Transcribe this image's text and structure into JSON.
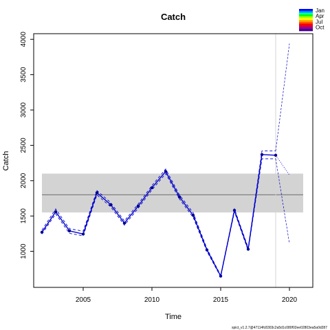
{
  "chart_data": {
    "type": "line",
    "title": "Catch",
    "xlabel": "Time",
    "ylabel": "Catch",
    "xlim": [
      2001.4,
      2021.7
    ],
    "ylim": [
      490,
      4080
    ],
    "x_ticks": [
      2005,
      2010,
      2015,
      2020
    ],
    "y_ticks": [
      1000,
      1500,
      2000,
      2500,
      3000,
      3500,
      4000
    ],
    "grid": false,
    "band": {
      "x": [
        2002,
        2021
      ],
      "y": [
        1550,
        2100
      ],
      "color": "#d3d3d3"
    },
    "hline": {
      "y": 1800,
      "color": "#7f7f7f"
    },
    "vline": {
      "x": 2019,
      "color": "#d3d3d3"
    },
    "series": [
      {
        "style": "solid-with-points",
        "color": "#0000cd",
        "x": [
          2002,
          2003,
          2004,
          2005,
          2006,
          2007,
          2008,
          2009,
          2010,
          2011,
          2012,
          2013,
          2014,
          2015,
          2016,
          2017,
          2018,
          2019
        ],
        "y": [
          1270,
          1560,
          1290,
          1245,
          1830,
          1660,
          1400,
          1640,
          1900,
          2130,
          1770,
          1510,
          1020,
          650,
          1580,
          1030,
          2370,
          2360
        ]
      },
      {
        "style": "dashed",
        "color": "#0000cd",
        "x": [
          2002,
          2003,
          2004,
          2005,
          2006,
          2007,
          2008,
          2009,
          2010,
          2011,
          2012,
          2013,
          2014,
          2015,
          2016,
          2017,
          2018,
          2019
        ],
        "y": [
          1300,
          1600,
          1320,
          1285,
          1860,
          1690,
          1430,
          1670,
          1930,
          2165,
          1800,
          1545,
          1040,
          660,
          1600,
          1050,
          2420,
          2420
        ]
      },
      {
        "style": "dashed",
        "color": "#0000cd",
        "x": [
          2002,
          2003,
          2004,
          2005,
          2006,
          2007,
          2008,
          2009,
          2010,
          2011,
          2012,
          2013,
          2014,
          2015,
          2016,
          2017,
          2018,
          2019
        ],
        "y": [
          1245,
          1530,
          1255,
          1220,
          1800,
          1630,
          1370,
          1610,
          1870,
          2100,
          1740,
          1480,
          1000,
          640,
          1560,
          1010,
          2310,
          2310
        ]
      },
      {
        "style": "dotted",
        "color": "#0000cd",
        "x": [
          2019,
          2020
        ],
        "y": [
          2360,
          2080
        ]
      },
      {
        "style": "dashed-thin",
        "color": "#0000cd",
        "x": [
          2019,
          2020
        ],
        "y": [
          2420,
          3940
        ]
      },
      {
        "style": "dashed-thin",
        "color": "#0000cd",
        "x": [
          2019,
          2020
        ],
        "y": [
          2310,
          1110
        ]
      }
    ],
    "legend": {
      "placement": "top-right",
      "labels": [
        "Jan",
        "Apr",
        "Jul",
        "Oct"
      ],
      "colors": [
        "#0000ff",
        "#0088ff",
        "#00ffaa",
        "#00ff00",
        "#aaff00",
        "#ffff00",
        "#ffaa00",
        "#ff5500",
        "#ff0000",
        "#cc0044",
        "#8800aa",
        "#440088"
      ]
    },
    "footer": "spict_v1.2.7@47114fc8303c2a5d1c080f02ee02803ea5a0d287"
  }
}
